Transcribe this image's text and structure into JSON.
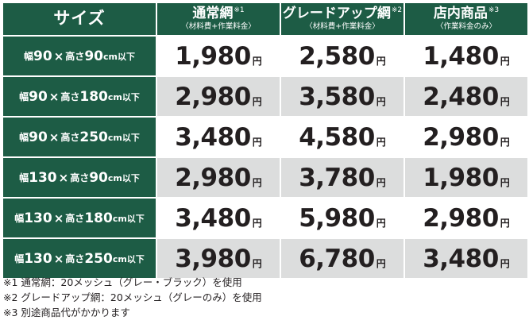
{
  "header": {
    "size_label": "サイズ",
    "columns": [
      {
        "title": "通常網",
        "mark": "※1",
        "sub": "〈材料費+作業料金〉"
      },
      {
        "title": "グレードアップ網",
        "mark": "※2",
        "sub": "〈材料費+作業料金〉"
      },
      {
        "title": "店内商品",
        "mark": "※3",
        "sub": "〈作業料金のみ〉"
      }
    ]
  },
  "yen": "円",
  "rows": [
    {
      "w": "90",
      "h": "90",
      "prices": [
        "1,980",
        "2,580",
        "1,480"
      ]
    },
    {
      "w": "90",
      "h": "180",
      "prices": [
        "2,980",
        "3,580",
        "2,480"
      ]
    },
    {
      "w": "90",
      "h": "250",
      "prices": [
        "3,480",
        "4,580",
        "2,980"
      ]
    },
    {
      "w": "130",
      "h": "90",
      "prices": [
        "2,980",
        "3,780",
        "1,980"
      ]
    },
    {
      "w": "130",
      "h": "180",
      "prices": [
        "3,480",
        "5,980",
        "2,980"
      ]
    },
    {
      "w": "130",
      "h": "250",
      "prices": [
        "3,980",
        "6,780",
        "3,480"
      ]
    }
  ],
  "size_words": {
    "width": "幅",
    "times": "×",
    "height": "高さ",
    "unit": "cm以下"
  },
  "notes": [
    "※1 通常網：20メッシュ（グレー・ブラック）を使用",
    "※2 グレードアップ網：20メッシュ（グレーのみ）を使用",
    "※3 別途商品代がかかります"
  ]
}
